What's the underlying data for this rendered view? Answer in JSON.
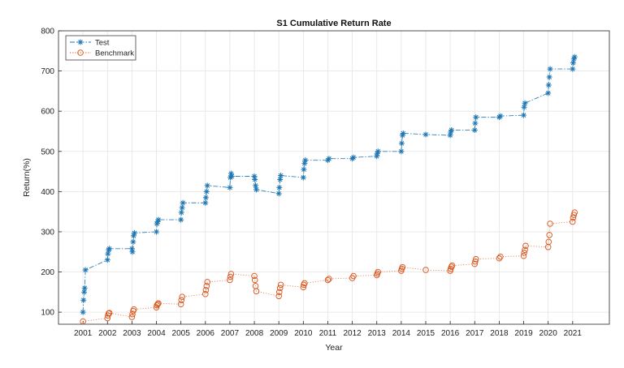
{
  "chart_data": {
    "type": "line",
    "title": "S1 Cumulative Return Rate",
    "xlabel": "Year",
    "ylabel": "Return(%)",
    "xlim": [
      2000,
      2022.5
    ],
    "ylim": [
      70,
      800
    ],
    "xticks": [
      2001,
      2002,
      2003,
      2004,
      2005,
      2006,
      2007,
      2008,
      2009,
      2010,
      2011,
      2012,
      2013,
      2014,
      2015,
      2016,
      2017,
      2018,
      2019,
      2020,
      2021
    ],
    "yticks": [
      100,
      200,
      300,
      400,
      500,
      600,
      700,
      800
    ],
    "grid": true,
    "legend_position": "top-left",
    "series": [
      {
        "name": "Test",
        "color": "#1f77b4",
        "marker": "star",
        "line": "dash-dot",
        "points": [
          [
            2001.0,
            100
          ],
          [
            2001.02,
            130
          ],
          [
            2001.05,
            150
          ],
          [
            2001.07,
            160
          ],
          [
            2001.1,
            205
          ],
          [
            2002.0,
            230
          ],
          [
            2002.02,
            245
          ],
          [
            2002.05,
            255
          ],
          [
            2002.08,
            258
          ],
          [
            2003.0,
            258
          ],
          [
            2003.02,
            250
          ],
          [
            2003.05,
            275
          ],
          [
            2003.07,
            290
          ],
          [
            2003.1,
            297
          ],
          [
            2004.0,
            300
          ],
          [
            2004.02,
            320
          ],
          [
            2004.05,
            325
          ],
          [
            2004.08,
            330
          ],
          [
            2005.0,
            330
          ],
          [
            2005.02,
            348
          ],
          [
            2005.05,
            360
          ],
          [
            2005.08,
            372
          ],
          [
            2006.0,
            372
          ],
          [
            2006.02,
            385
          ],
          [
            2006.05,
            400
          ],
          [
            2006.08,
            415
          ],
          [
            2007.0,
            410
          ],
          [
            2007.02,
            435
          ],
          [
            2007.05,
            445
          ],
          [
            2007.08,
            438
          ],
          [
            2008.0,
            438
          ],
          [
            2008.02,
            430
          ],
          [
            2008.05,
            415
          ],
          [
            2008.08,
            405
          ],
          [
            2009.0,
            395
          ],
          [
            2009.02,
            410
          ],
          [
            2009.05,
            430
          ],
          [
            2009.08,
            440
          ],
          [
            2010.0,
            435
          ],
          [
            2010.02,
            455
          ],
          [
            2010.05,
            470
          ],
          [
            2010.08,
            478
          ],
          [
            2011.0,
            478
          ],
          [
            2011.05,
            482
          ],
          [
            2012.0,
            482
          ],
          [
            2012.05,
            485
          ],
          [
            2013.0,
            488
          ],
          [
            2013.02,
            495
          ],
          [
            2013.05,
            500
          ],
          [
            2014.0,
            500
          ],
          [
            2014.02,
            520
          ],
          [
            2014.05,
            540
          ],
          [
            2014.08,
            545
          ],
          [
            2015.0,
            542
          ],
          [
            2016.0,
            540
          ],
          [
            2016.02,
            548
          ],
          [
            2016.05,
            553
          ],
          [
            2017.0,
            553
          ],
          [
            2017.02,
            570
          ],
          [
            2017.05,
            585
          ],
          [
            2018.0,
            585
          ],
          [
            2018.05,
            588
          ],
          [
            2019.0,
            590
          ],
          [
            2019.02,
            610
          ],
          [
            2019.05,
            620
          ],
          [
            2020.0,
            645
          ],
          [
            2020.02,
            665
          ],
          [
            2020.05,
            685
          ],
          [
            2020.08,
            705
          ],
          [
            2021.0,
            705
          ],
          [
            2021.02,
            720
          ],
          [
            2021.05,
            730
          ],
          [
            2021.08,
            735
          ]
        ]
      },
      {
        "name": "Benchmark",
        "color": "#d95319",
        "marker": "circle",
        "line": "dotted",
        "points": [
          [
            2001.0,
            77
          ],
          [
            2002.0,
            85
          ],
          [
            2002.02,
            92
          ],
          [
            2002.05,
            97
          ],
          [
            2002.08,
            98
          ],
          [
            2003.0,
            88
          ],
          [
            2003.02,
            95
          ],
          [
            2003.05,
            103
          ],
          [
            2003.08,
            107
          ],
          [
            2004.0,
            112
          ],
          [
            2004.02,
            117
          ],
          [
            2004.05,
            120
          ],
          [
            2004.08,
            122
          ],
          [
            2005.0,
            120
          ],
          [
            2005.02,
            130
          ],
          [
            2005.05,
            138
          ],
          [
            2006.0,
            145
          ],
          [
            2006.02,
            155
          ],
          [
            2006.05,
            165
          ],
          [
            2006.08,
            175
          ],
          [
            2007.0,
            180
          ],
          [
            2007.02,
            188
          ],
          [
            2007.05,
            195
          ],
          [
            2008.0,
            190
          ],
          [
            2008.02,
            180
          ],
          [
            2008.05,
            165
          ],
          [
            2008.08,
            152
          ],
          [
            2009.0,
            140
          ],
          [
            2009.02,
            150
          ],
          [
            2009.05,
            160
          ],
          [
            2009.08,
            168
          ],
          [
            2010.0,
            162
          ],
          [
            2010.02,
            168
          ],
          [
            2010.05,
            172
          ],
          [
            2011.0,
            180
          ],
          [
            2011.05,
            183
          ],
          [
            2012.0,
            185
          ],
          [
            2012.05,
            190
          ],
          [
            2013.0,
            192
          ],
          [
            2013.02,
            196
          ],
          [
            2013.05,
            200
          ],
          [
            2014.0,
            203
          ],
          [
            2014.02,
            208
          ],
          [
            2014.05,
            212
          ],
          [
            2015.0,
            205
          ],
          [
            2016.0,
            203
          ],
          [
            2016.02,
            208
          ],
          [
            2016.05,
            213
          ],
          [
            2016.08,
            216
          ],
          [
            2017.0,
            220
          ],
          [
            2017.02,
            226
          ],
          [
            2017.05,
            232
          ],
          [
            2018.0,
            234
          ],
          [
            2018.05,
            238
          ],
          [
            2019.0,
            240
          ],
          [
            2019.02,
            248
          ],
          [
            2019.05,
            255
          ],
          [
            2019.08,
            265
          ],
          [
            2020.0,
            262
          ],
          [
            2020.02,
            275
          ],
          [
            2020.05,
            292
          ],
          [
            2020.08,
            320
          ],
          [
            2021.0,
            325
          ],
          [
            2021.02,
            335
          ],
          [
            2021.05,
            342
          ],
          [
            2021.08,
            348
          ]
        ]
      }
    ]
  }
}
